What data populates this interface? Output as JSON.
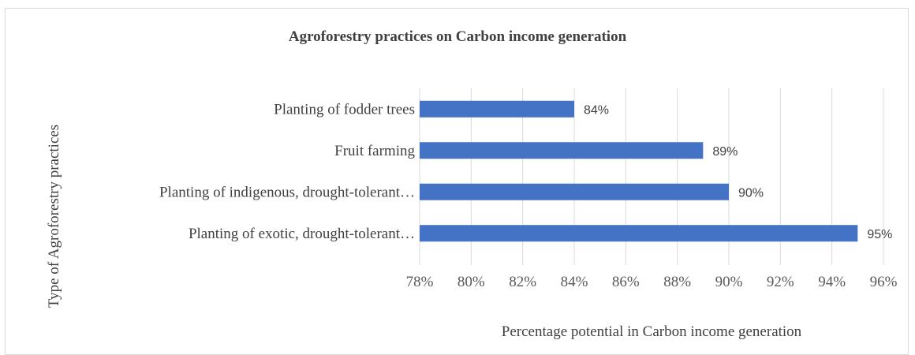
{
  "chart_data": {
    "type": "bar",
    "orientation": "horizontal",
    "title": "Agroforestry practices on Carbon income generation",
    "xlabel": "Percentage potential in Carbon income generation",
    "ylabel": "Type of Agroforestry practices",
    "categories": [
      "Planting of fodder trees",
      "Fruit farming",
      "Planting of indigenous, drought-tolerant…",
      "Planting of exotic, drought-tolerant…"
    ],
    "values": [
      84,
      89,
      90,
      95
    ],
    "data_labels": [
      "84%",
      "89%",
      "90%",
      "95%"
    ],
    "xlim": [
      78,
      96
    ],
    "xticks": [
      78,
      80,
      82,
      84,
      86,
      88,
      90,
      92,
      94,
      96
    ],
    "xtick_labels": [
      "78%",
      "80%",
      "82%",
      "84%",
      "86%",
      "88%",
      "90%",
      "92%",
      "94%",
      "96%"
    ],
    "grid": true,
    "bar_color": "#4472c4"
  }
}
